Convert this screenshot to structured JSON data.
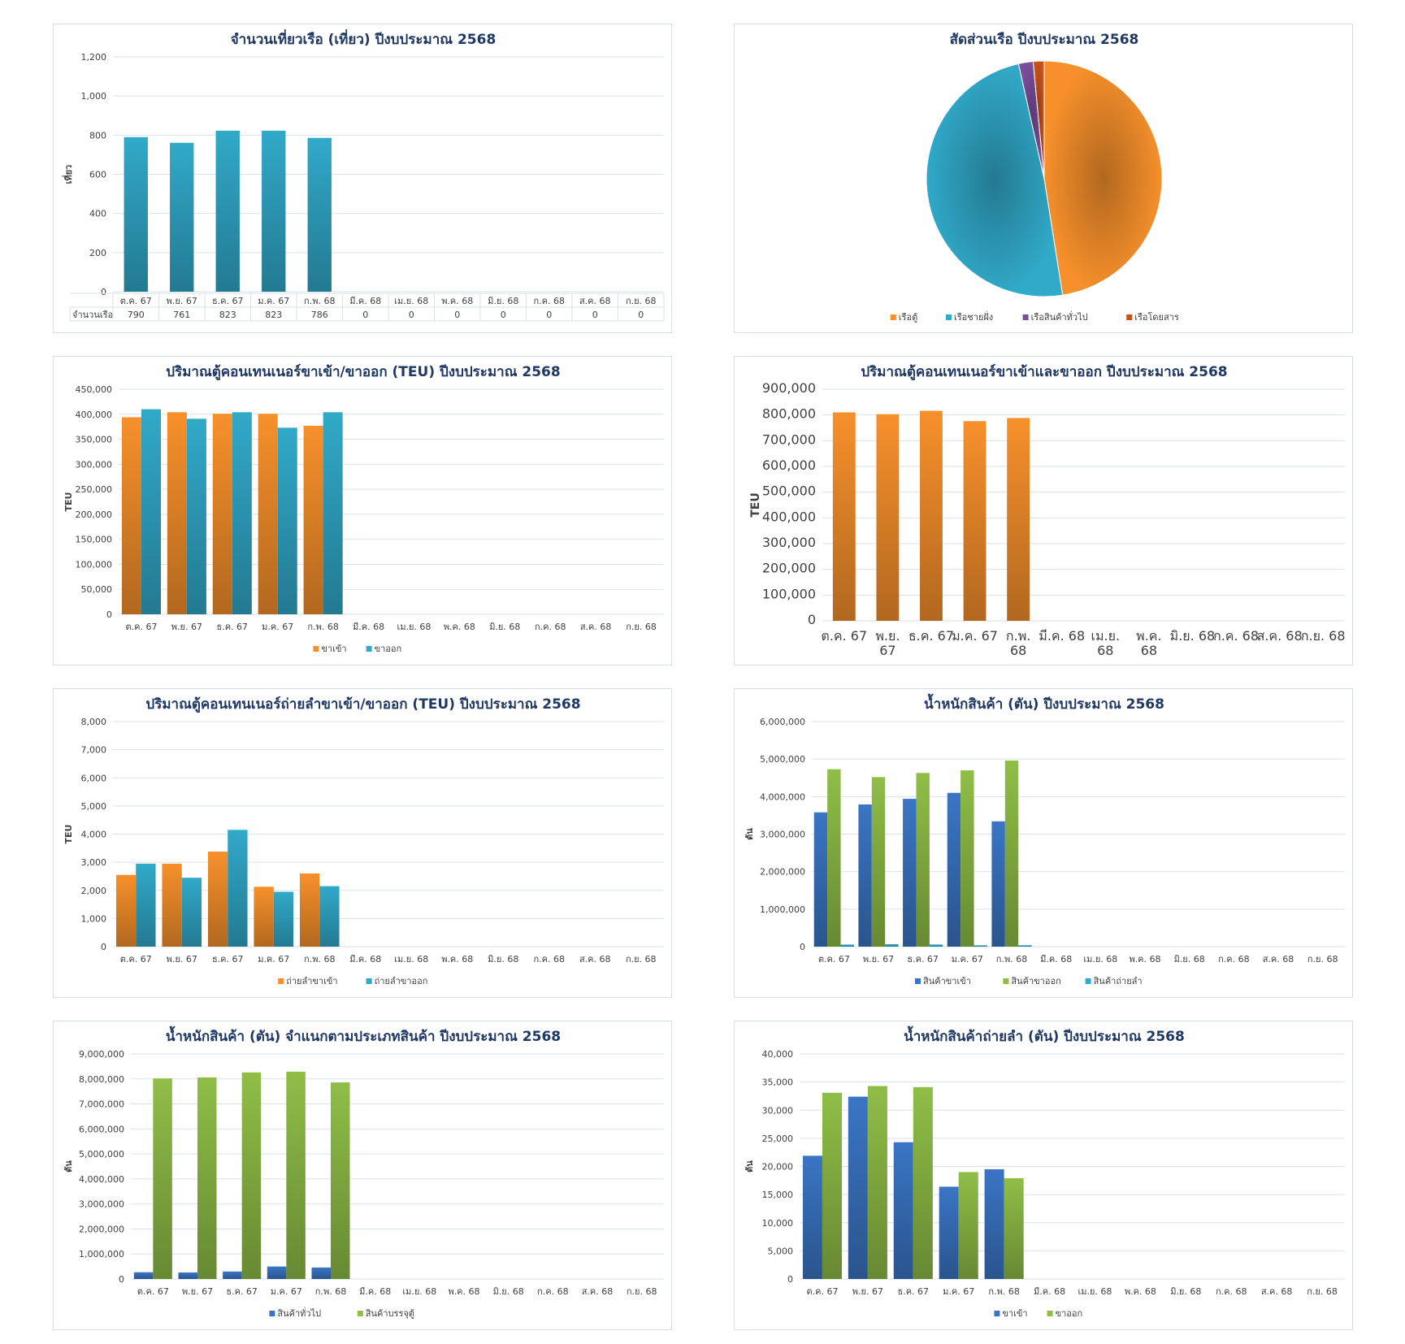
{
  "months": [
    "ต.ค. 67",
    "พ.ย. 67",
    "ธ.ค. 67",
    "ม.ค. 67",
    "ก.พ. 68",
    "มี.ค. 68",
    "เม.ย. 68",
    "พ.ค. 68",
    "มิ.ย. 68",
    "ก.ค. 68",
    "ส.ค. 68",
    "ก.ย. 68"
  ],
  "colors": {
    "blue_bar": "#31a9c9",
    "orange_bar": "#f7902b",
    "green_bar": "#8fbe47",
    "navy_bar": "#3a75c4",
    "purple": "#7a4e9c",
    "red_orange": "#c8501a",
    "title": "#1f3864"
  },
  "chart_data": [
    {
      "id": "c1",
      "type": "bar",
      "title": "จำนวนเที่ยวเรือ (เที่ยว) ปีงบประมาณ 2568",
      "ylabel": "เที่ยว",
      "ylim": [
        0,
        1200
      ],
      "yticks": [
        "0",
        "200",
        "400",
        "600",
        "800",
        "1,000",
        "1,200"
      ],
      "categories_ref": "months",
      "series": [
        {
          "name": "จำนวนเรือ",
          "color": "#31a9c9",
          "values": [
            790,
            761,
            823,
            823,
            786,
            0,
            0,
            0,
            0,
            0,
            0,
            0
          ]
        }
      ],
      "data_table": {
        "row_label": "จำนวนเรือ",
        "values": [
          "790",
          "761",
          "823",
          "823",
          "786",
          "0",
          "0",
          "0",
          "0",
          "0",
          "0",
          "0"
        ]
      },
      "grid": true
    },
    {
      "id": "c2",
      "type": "pie",
      "title": "สัดส่วนเรือ ปีงบประมาณ 2568",
      "slices": [
        {
          "name": "เรือตู้",
          "value": 47.5,
          "color": "#f7902b"
        },
        {
          "name": "เรือชายฝั่ง",
          "value": 49.0,
          "color": "#31a9c9"
        },
        {
          "name": "เรือสินค้าทั่วไป",
          "value": 2.0,
          "color": "#7a4e9c"
        },
        {
          "name": "เรือโดยสาร",
          "value": 1.5,
          "color": "#c8501a"
        }
      ],
      "legend": "bottom"
    },
    {
      "id": "c3",
      "type": "bar",
      "title": "ปริมาณตู้คอนเทนเนอร์ขาเข้า/ขาออก (TEU) ปีงบประมาณ 2568",
      "ylabel": "TEU",
      "ylim": [
        0,
        450000
      ],
      "yticks": [
        "0",
        "50,000",
        "100,000",
        "150,000",
        "200,000",
        "250,000",
        "300,000",
        "350,000",
        "400,000",
        "450,000"
      ],
      "series": [
        {
          "name": "ขาเข้า",
          "color": "#f7902b",
          "values": [
            394000,
            404000,
            401000,
            401000,
            377000,
            0,
            0,
            0,
            0,
            0,
            0,
            0
          ]
        },
        {
          "name": "ขาออก",
          "color": "#31a9c9",
          "values": [
            410000,
            391000,
            404000,
            373000,
            404000,
            0,
            0,
            0,
            0,
            0,
            0,
            0
          ]
        }
      ],
      "legend": "bottom",
      "grid": true
    },
    {
      "id": "c4",
      "type": "bar",
      "title": "ปริมาณตู้คอนเทนเนอร์ขาเข้าและขาออก ปีงบประมาณ 2568",
      "ylabel": "TEU",
      "ylim": [
        0,
        900000
      ],
      "yticks": [
        "0",
        "100,000",
        "200,000",
        "300,000",
        "400,000",
        "500,000",
        "600,000",
        "700,000",
        "800,000",
        "900,000"
      ],
      "xticks": [
        [
          "ต.ค. 67"
        ],
        [
          "พ.ย.",
          "67"
        ],
        [
          "ธ.ค. 67"
        ],
        [
          "ม.ค. 67"
        ],
        [
          "ก.พ.",
          "68"
        ],
        [
          "มี.ค. 68"
        ],
        [
          "เม.ย.",
          "68"
        ],
        [
          "พ.ค.",
          "68"
        ],
        [
          "มิ.ย. 68"
        ],
        [
          "ก.ค. 68"
        ],
        [
          "ส.ค. 68"
        ],
        [
          "ก.ย. 68"
        ]
      ],
      "series": [
        {
          "name": "",
          "color": "#f7902b",
          "values": [
            810000,
            803000,
            816000,
            776000,
            788000,
            0,
            0,
            0,
            0,
            0,
            0,
            0
          ]
        }
      ],
      "grid": true
    },
    {
      "id": "c5",
      "type": "bar",
      "title": "ปริมาณตู้คอนเทนเนอร์ถ่ายลำขาเข้า/ขาออก (TEU) ปีงบประมาณ 2568",
      "ylabel": "TEU",
      "ylim": [
        0,
        8000
      ],
      "yticks": [
        "0",
        "1,000",
        "2,000",
        "3,000",
        "4,000",
        "5,000",
        "6,000",
        "7,000",
        "8,000"
      ],
      "series": [
        {
          "name": "ถ่ายลำขาเข้า",
          "color": "#f7902b",
          "values": [
            2550,
            2950,
            3380,
            2130,
            2600,
            0,
            0,
            0,
            0,
            0,
            0,
            0
          ]
        },
        {
          "name": "ถ่ายลำขาออก",
          "color": "#31a9c9",
          "values": [
            2950,
            2450,
            4150,
            1950,
            2150,
            0,
            0,
            0,
            0,
            0,
            0,
            0
          ]
        }
      ],
      "legend": "bottom",
      "grid": true
    },
    {
      "id": "c6",
      "type": "bar",
      "title": "น้ำหนักสินค้า (ตัน) ปีงบประมาณ 2568",
      "ylabel": "ตัน",
      "ylim": [
        0,
        6000000
      ],
      "yticks": [
        "0",
        "1,000,000",
        "2,000,000",
        "3,000,000",
        "4,000,000",
        "5,000,000",
        "6,000,000"
      ],
      "series": [
        {
          "name": "สินค้าขาเข้า",
          "color": "#3a75c4",
          "values": [
            3580000,
            3790000,
            3940000,
            4100000,
            3340000,
            0,
            0,
            0,
            0,
            0,
            0,
            0
          ]
        },
        {
          "name": "สินค้าขาออก",
          "color": "#8fbe47",
          "values": [
            4730000,
            4520000,
            4630000,
            4700000,
            4960000,
            0,
            0,
            0,
            0,
            0,
            0,
            0
          ]
        },
        {
          "name": "สินค้าถ่ายลำ",
          "color": "#31a9c9",
          "values": [
            55000,
            66000,
            58000,
            36000,
            38000,
            0,
            0,
            0,
            0,
            0,
            0,
            0
          ]
        }
      ],
      "legend": "bottom",
      "grid": true
    },
    {
      "id": "c7",
      "type": "bar",
      "title": "น้ำหนักสินค้า (ตัน) จำแนกตามประเภทสินค้า ปีงบประมาณ 2568",
      "ylabel": "ตัน",
      "ylim": [
        0,
        9000000
      ],
      "yticks": [
        "0",
        "1,000,000",
        "2,000,000",
        "3,000,000",
        "4,000,000",
        "5,000,000",
        "6,000,000",
        "7,000,000",
        "8,000,000",
        "9,000,000"
      ],
      "series": [
        {
          "name": "สินค้าทั่วไป",
          "color": "#3a75c4",
          "values": [
            270000,
            260000,
            300000,
            500000,
            460000,
            0,
            0,
            0,
            0,
            0,
            0,
            0
          ]
        },
        {
          "name": "สินค้าบรรจุตู้",
          "color": "#8fbe47",
          "values": [
            8020000,
            8060000,
            8260000,
            8290000,
            7860000,
            0,
            0,
            0,
            0,
            0,
            0,
            0
          ]
        }
      ],
      "legend": "bottom",
      "grid": true
    },
    {
      "id": "c8",
      "type": "bar",
      "title": "น้ำหนักสินค้าถ่ายลำ (ตัน) ปีงบประมาณ 2568",
      "ylabel": "ตัน",
      "ylim": [
        0,
        40000
      ],
      "yticks": [
        "0",
        "5,000",
        "10,000",
        "15,000",
        "20,000",
        "25,000",
        "30,000",
        "35,000",
        "40,000"
      ],
      "series": [
        {
          "name": "ขาเข้า",
          "color": "#3a75c4",
          "values": [
            21900,
            32400,
            24300,
            16400,
            19500,
            0,
            0,
            0,
            0,
            0,
            0,
            0
          ]
        },
        {
          "name": "ขาออก",
          "color": "#8fbe47",
          "values": [
            33100,
            34300,
            34100,
            19000,
            17900,
            0,
            0,
            0,
            0,
            0,
            0,
            0
          ]
        }
      ],
      "legend": "bottom",
      "grid": true
    }
  ]
}
